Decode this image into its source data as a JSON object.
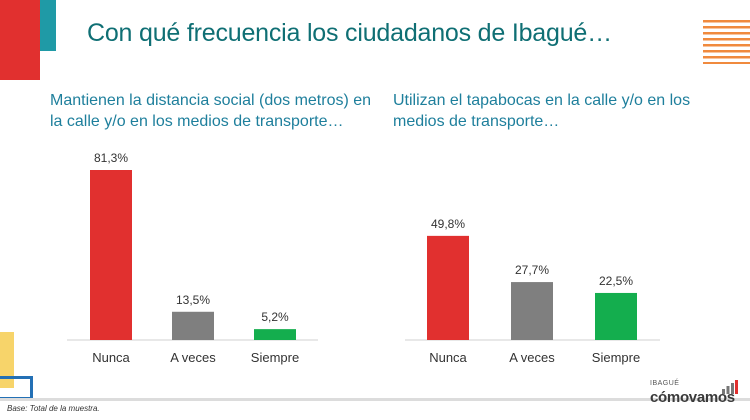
{
  "page": {
    "title": "Con qué frecuencia los ciudadanos de Ibagué…",
    "footnote": "Base: Total de la muestra.",
    "logo_small": "IBAGUÉ",
    "logo_main": "cómovamos"
  },
  "colors": {
    "title": "#0f6f74",
    "subtitle": "#1e7f9c",
    "nunca": "#e1302f",
    "a_veces": "#7f7f7f",
    "siempre": "#14ae4e",
    "deco_red": "#e1302f",
    "deco_teal": "#1f9aa6",
    "deco_orange": "#f08a3e",
    "deco_yellow": "#f7d46a",
    "deco_blue": "#2370b5"
  },
  "chart_data": [
    {
      "type": "bar",
      "title": "Mantienen la distancia social (dos metros) en la calle y/o en los medios de transporte…",
      "categories": [
        "Nunca",
        "A veces",
        "Siempre"
      ],
      "values": [
        81.3,
        13.5,
        5.2
      ],
      "data_labels": [
        "81,3%",
        "13,5%",
        "5,2%"
      ],
      "ylim": [
        0,
        100
      ],
      "grid": false
    },
    {
      "type": "bar",
      "title": "Utilizan el tapabocas en la calle y/o en los medios de transporte…",
      "categories": [
        "Nunca",
        "A veces",
        "Siempre"
      ],
      "values": [
        49.8,
        27.7,
        22.5
      ],
      "data_labels": [
        "49,8%",
        "27,7%",
        "22,5%"
      ],
      "ylim": [
        0,
        100
      ],
      "grid": false
    }
  ]
}
